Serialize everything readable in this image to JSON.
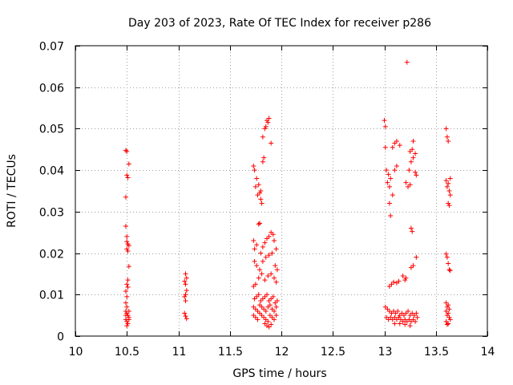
{
  "chart_data": {
    "type": "scatter",
    "title": "Day 203 of 2023, Rate Of TEC Index for receiver p286",
    "xlabel": "GPS time / hours",
    "ylabel": "ROTI / TECUs",
    "xlim": [
      10,
      14
    ],
    "ylim": [
      0,
      0.07
    ],
    "x_ticks": [
      10,
      10.5,
      11,
      11.5,
      12,
      12.5,
      13,
      13.5,
      14
    ],
    "x_tick_labels": [
      "10",
      "10.5",
      "11",
      "11.5",
      "12",
      "12.5",
      "13",
      "13.5",
      "14"
    ],
    "y_ticks": [
      0,
      0.01,
      0.02,
      0.03,
      0.04,
      0.05,
      0.06,
      0.07
    ],
    "y_tick_labels": [
      "0",
      "0.01",
      "0.02",
      "0.03",
      "0.04",
      "0.05",
      "0.06",
      "0.07"
    ],
    "grid": true,
    "marker": "+",
    "color": "#ff0000",
    "series": [
      {
        "name": "ROTI",
        "points": [
          [
            10.49,
            0.0448
          ],
          [
            10.5,
            0.0445
          ],
          [
            10.52,
            0.0415
          ],
          [
            10.5,
            0.0388
          ],
          [
            10.51,
            0.0382
          ],
          [
            10.49,
            0.0335
          ],
          [
            10.49,
            0.0265
          ],
          [
            10.5,
            0.024
          ],
          [
            10.5,
            0.0228
          ],
          [
            10.51,
            0.0222
          ],
          [
            10.52,
            0.0218
          ],
          [
            10.5,
            0.021
          ],
          [
            10.51,
            0.0205
          ],
          [
            10.52,
            0.0168
          ],
          [
            10.51,
            0.0135
          ],
          [
            10.5,
            0.0125
          ],
          [
            10.51,
            0.0118
          ],
          [
            10.49,
            0.0108
          ],
          [
            10.5,
            0.0095
          ],
          [
            10.49,
            0.008
          ],
          [
            10.5,
            0.007
          ],
          [
            10.49,
            0.006
          ],
          [
            10.5,
            0.0055
          ],
          [
            10.51,
            0.005
          ],
          [
            10.52,
            0.0045
          ],
          [
            10.49,
            0.004
          ],
          [
            10.5,
            0.0035
          ],
          [
            10.51,
            0.003
          ],
          [
            10.52,
            0.004
          ],
          [
            10.5,
            0.0025
          ],
          [
            10.52,
            0.006
          ],
          [
            10.49,
            0.005
          ],
          [
            11.07,
            0.015
          ],
          [
            11.08,
            0.014
          ],
          [
            11.06,
            0.0132
          ],
          [
            11.07,
            0.0125
          ],
          [
            11.08,
            0.011
          ],
          [
            11.07,
            0.01
          ],
          [
            11.06,
            0.0095
          ],
          [
            11.07,
            0.0085
          ],
          [
            11.06,
            0.0055
          ],
          [
            11.07,
            0.0048
          ],
          [
            11.08,
            0.0042
          ],
          [
            11.73,
            0.041
          ],
          [
            11.74,
            0.04
          ],
          [
            11.76,
            0.038
          ],
          [
            11.75,
            0.036
          ],
          [
            11.78,
            0.0365
          ],
          [
            11.77,
            0.034
          ],
          [
            11.79,
            0.0345
          ],
          [
            11.8,
            0.035
          ],
          [
            11.8,
            0.033
          ],
          [
            11.81,
            0.032
          ],
          [
            11.82,
            0.042
          ],
          [
            11.83,
            0.043
          ],
          [
            11.82,
            0.048
          ],
          [
            11.84,
            0.05
          ],
          [
            11.85,
            0.0505
          ],
          [
            11.86,
            0.052
          ],
          [
            11.87,
            0.0515
          ],
          [
            11.88,
            0.0525
          ],
          [
            11.9,
            0.0465
          ],
          [
            11.79,
            0.0272
          ],
          [
            11.78,
            0.027
          ],
          [
            11.73,
            0.023
          ],
          [
            11.74,
            0.021
          ],
          [
            11.76,
            0.022
          ],
          [
            11.8,
            0.02
          ],
          [
            11.82,
            0.0215
          ],
          [
            11.84,
            0.0225
          ],
          [
            11.86,
            0.0235
          ],
          [
            11.88,
            0.024
          ],
          [
            11.9,
            0.025
          ],
          [
            11.92,
            0.0245
          ],
          [
            11.93,
            0.023
          ],
          [
            11.95,
            0.021
          ],
          [
            11.74,
            0.018
          ],
          [
            11.76,
            0.017
          ],
          [
            11.79,
            0.016
          ],
          [
            11.82,
            0.018
          ],
          [
            11.85,
            0.019
          ],
          [
            11.88,
            0.0195
          ],
          [
            11.91,
            0.02
          ],
          [
            11.94,
            0.017
          ],
          [
            11.96,
            0.016
          ],
          [
            11.73,
            0.012
          ],
          [
            11.75,
            0.0125
          ],
          [
            11.78,
            0.014
          ],
          [
            11.81,
            0.015
          ],
          [
            11.84,
            0.0135
          ],
          [
            11.87,
            0.0145
          ],
          [
            11.9,
            0.015
          ],
          [
            11.93,
            0.014
          ],
          [
            11.95,
            0.013
          ],
          [
            11.74,
            0.009
          ],
          [
            11.76,
            0.0095
          ],
          [
            11.78,
            0.01
          ],
          [
            11.8,
            0.0085
          ],
          [
            11.82,
            0.009
          ],
          [
            11.84,
            0.0095
          ],
          [
            11.86,
            0.01
          ],
          [
            11.88,
            0.0085
          ],
          [
            11.9,
            0.009
          ],
          [
            11.92,
            0.0095
          ],
          [
            11.94,
            0.008
          ],
          [
            11.96,
            0.0085
          ],
          [
            11.73,
            0.007
          ],
          [
            11.75,
            0.0065
          ],
          [
            11.77,
            0.006
          ],
          [
            11.79,
            0.0075
          ],
          [
            11.81,
            0.007
          ],
          [
            11.83,
            0.0065
          ],
          [
            11.85,
            0.006
          ],
          [
            11.87,
            0.007
          ],
          [
            11.89,
            0.0075
          ],
          [
            11.91,
            0.0065
          ],
          [
            11.93,
            0.006
          ],
          [
            11.95,
            0.007
          ],
          [
            11.73,
            0.005
          ],
          [
            11.75,
            0.0045
          ],
          [
            11.77,
            0.004
          ],
          [
            11.79,
            0.0055
          ],
          [
            11.81,
            0.005
          ],
          [
            11.83,
            0.0045
          ],
          [
            11.85,
            0.004
          ],
          [
            11.87,
            0.0035
          ],
          [
            11.89,
            0.005
          ],
          [
            11.91,
            0.0045
          ],
          [
            11.93,
            0.004
          ],
          [
            11.95,
            0.005
          ],
          [
            11.84,
            0.003
          ],
          [
            11.86,
            0.0025
          ],
          [
            11.88,
            0.0022
          ],
          [
            11.9,
            0.0028
          ],
          [
            13.0,
            0.052
          ],
          [
            13.01,
            0.0505
          ],
          [
            13.01,
            0.0455
          ],
          [
            13.08,
            0.0455
          ],
          [
            13.1,
            0.0465
          ],
          [
            13.12,
            0.047
          ],
          [
            13.15,
            0.046
          ],
          [
            13.22,
            0.066
          ],
          [
            13.25,
            0.0445
          ],
          [
            13.27,
            0.045
          ],
          [
            13.28,
            0.047
          ],
          [
            13.3,
            0.044
          ],
          [
            13.28,
            0.043
          ],
          [
            13.26,
            0.042
          ],
          [
            13.02,
            0.04
          ],
          [
            13.04,
            0.039
          ],
          [
            13.06,
            0.038
          ],
          [
            13.1,
            0.04
          ],
          [
            13.12,
            0.041
          ],
          [
            13.24,
            0.04
          ],
          [
            13.3,
            0.0395
          ],
          [
            13.31,
            0.0388
          ],
          [
            13.03,
            0.037
          ],
          [
            13.05,
            0.036
          ],
          [
            13.08,
            0.034
          ],
          [
            13.21,
            0.037
          ],
          [
            13.23,
            0.036
          ],
          [
            13.25,
            0.0365
          ],
          [
            13.05,
            0.032
          ],
          [
            13.06,
            0.029
          ],
          [
            13.26,
            0.026
          ],
          [
            13.27,
            0.0252
          ],
          [
            13.31,
            0.019
          ],
          [
            13.28,
            0.017
          ],
          [
            13.26,
            0.0165
          ],
          [
            13.18,
            0.0145
          ],
          [
            13.2,
            0.0135
          ],
          [
            13.21,
            0.014
          ],
          [
            13.05,
            0.012
          ],
          [
            13.07,
            0.0125
          ],
          [
            13.09,
            0.013
          ],
          [
            13.12,
            0.0128
          ],
          [
            13.14,
            0.0132
          ],
          [
            13.01,
            0.007
          ],
          [
            13.03,
            0.0065
          ],
          [
            13.05,
            0.006
          ],
          [
            13.07,
            0.0055
          ],
          [
            13.09,
            0.006
          ],
          [
            13.11,
            0.0055
          ],
          [
            13.13,
            0.006
          ],
          [
            13.15,
            0.005
          ],
          [
            13.17,
            0.0055
          ],
          [
            13.19,
            0.005
          ],
          [
            13.21,
            0.0055
          ],
          [
            13.23,
            0.006
          ],
          [
            13.25,
            0.005
          ],
          [
            13.27,
            0.0055
          ],
          [
            13.29,
            0.005
          ],
          [
            13.31,
            0.0055
          ],
          [
            13.02,
            0.0045
          ],
          [
            13.04,
            0.004
          ],
          [
            13.06,
            0.0045
          ],
          [
            13.08,
            0.004
          ],
          [
            13.1,
            0.0045
          ],
          [
            13.12,
            0.004
          ],
          [
            13.14,
            0.0045
          ],
          [
            13.16,
            0.004
          ],
          [
            13.18,
            0.0035
          ],
          [
            13.2,
            0.004
          ],
          [
            13.22,
            0.0035
          ],
          [
            13.24,
            0.004
          ],
          [
            13.26,
            0.0035
          ],
          [
            13.28,
            0.004
          ],
          [
            13.3,
            0.0035
          ],
          [
            13.32,
            0.0045
          ],
          [
            13.15,
            0.003
          ],
          [
            13.2,
            0.0028
          ],
          [
            13.25,
            0.0025
          ],
          [
            13.1,
            0.003
          ],
          [
            13.6,
            0.05
          ],
          [
            13.61,
            0.048
          ],
          [
            13.62,
            0.047
          ],
          [
            13.6,
            0.0375
          ],
          [
            13.62,
            0.0368
          ],
          [
            13.64,
            0.038
          ],
          [
            13.61,
            0.036
          ],
          [
            13.63,
            0.035
          ],
          [
            13.64,
            0.034
          ],
          [
            13.62,
            0.032
          ],
          [
            13.63,
            0.0315
          ],
          [
            13.6,
            0.0198
          ],
          [
            13.61,
            0.019
          ],
          [
            13.62,
            0.0175
          ],
          [
            13.63,
            0.016
          ],
          [
            13.64,
            0.0158
          ],
          [
            13.6,
            0.008
          ],
          [
            13.62,
            0.0075
          ],
          [
            13.61,
            0.007
          ],
          [
            13.63,
            0.0065
          ],
          [
            13.6,
            0.006
          ],
          [
            13.62,
            0.0055
          ],
          [
            13.61,
            0.005
          ],
          [
            13.63,
            0.0045
          ],
          [
            13.64,
            0.004
          ],
          [
            13.6,
            0.0035
          ],
          [
            13.62,
            0.003
          ],
          [
            13.61,
            0.0028
          ]
        ]
      }
    ]
  }
}
